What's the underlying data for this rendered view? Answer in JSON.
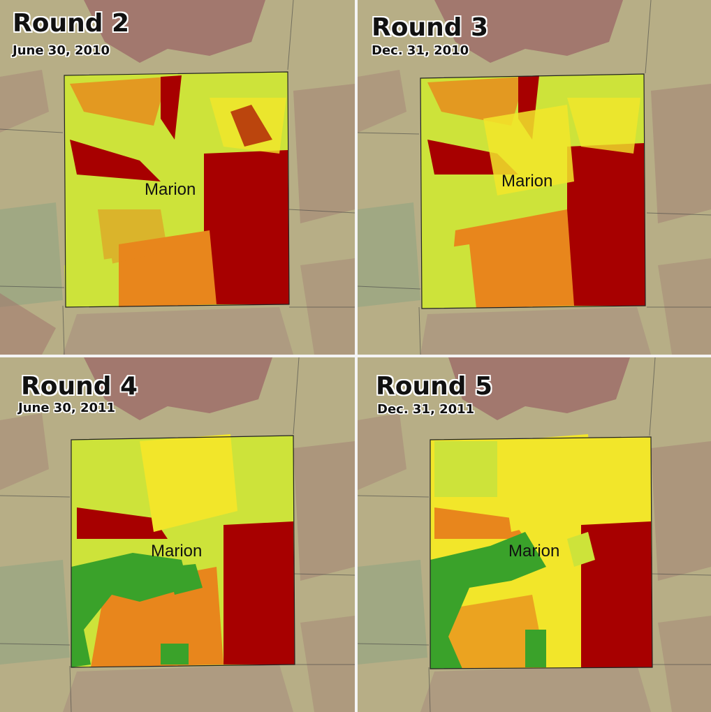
{
  "panels": [
    {
      "title": "Round 2",
      "date": "June 30, 2010",
      "city": "Marion"
    },
    {
      "title": "Round 3",
      "date": "Dec. 31, 2010",
      "city": "Marion"
    },
    {
      "title": "Round 4",
      "date": "June 30, 2011",
      "city": "Marion"
    },
    {
      "title": "Round 5",
      "date": "Dec. 31, 2011",
      "city": "Marion"
    }
  ],
  "colors": {
    "background_terrain": "#b7ae86",
    "background_dark": "#9f6f6a",
    "background_green": "#7fa07e",
    "highest": "#a70000",
    "high": "#e8861c",
    "medium": "#f2e62a",
    "low": "#cde33a",
    "lowest": "#3aa22a",
    "county_line": "#333333"
  }
}
